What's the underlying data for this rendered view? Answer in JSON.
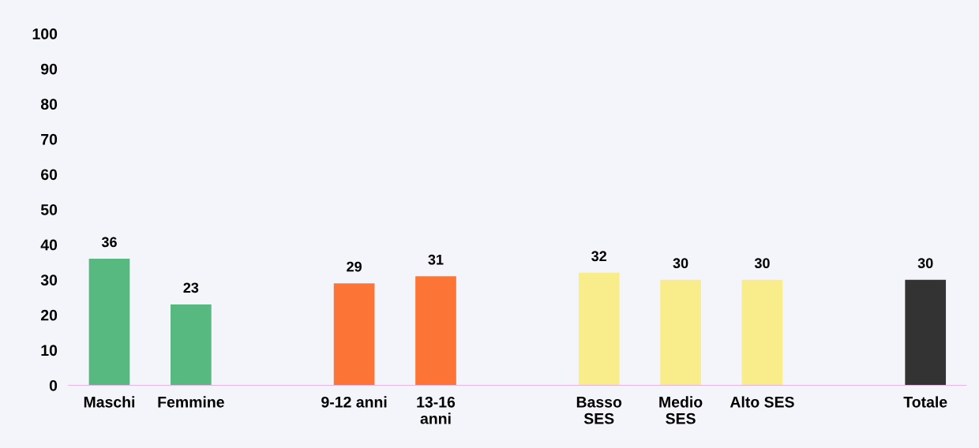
{
  "chart_data": {
    "type": "bar",
    "categories": [
      "Maschi",
      "Femmine",
      null,
      "9-12 anni",
      "13-16\nanni",
      null,
      "Basso\nSES",
      "Medio\nSES",
      "Alto SES",
      null,
      "Totale"
    ],
    "values": [
      36,
      23,
      null,
      29,
      31,
      null,
      32,
      30,
      30,
      null,
      30
    ],
    "colors": [
      "#57b97f",
      "#57b97f",
      "#57b97f",
      "#fc7436",
      "#fc7436",
      "#fc7436",
      "#f9ec8b",
      "#f9ec8b",
      "#f9ec8b",
      "#333333",
      "#333333"
    ],
    "ylim": [
      0,
      100
    ],
    "yticks": [
      0,
      10,
      20,
      30,
      40,
      50,
      60,
      70,
      80,
      90,
      100
    ],
    "grid": false,
    "legend": false,
    "data_labels": true
  }
}
